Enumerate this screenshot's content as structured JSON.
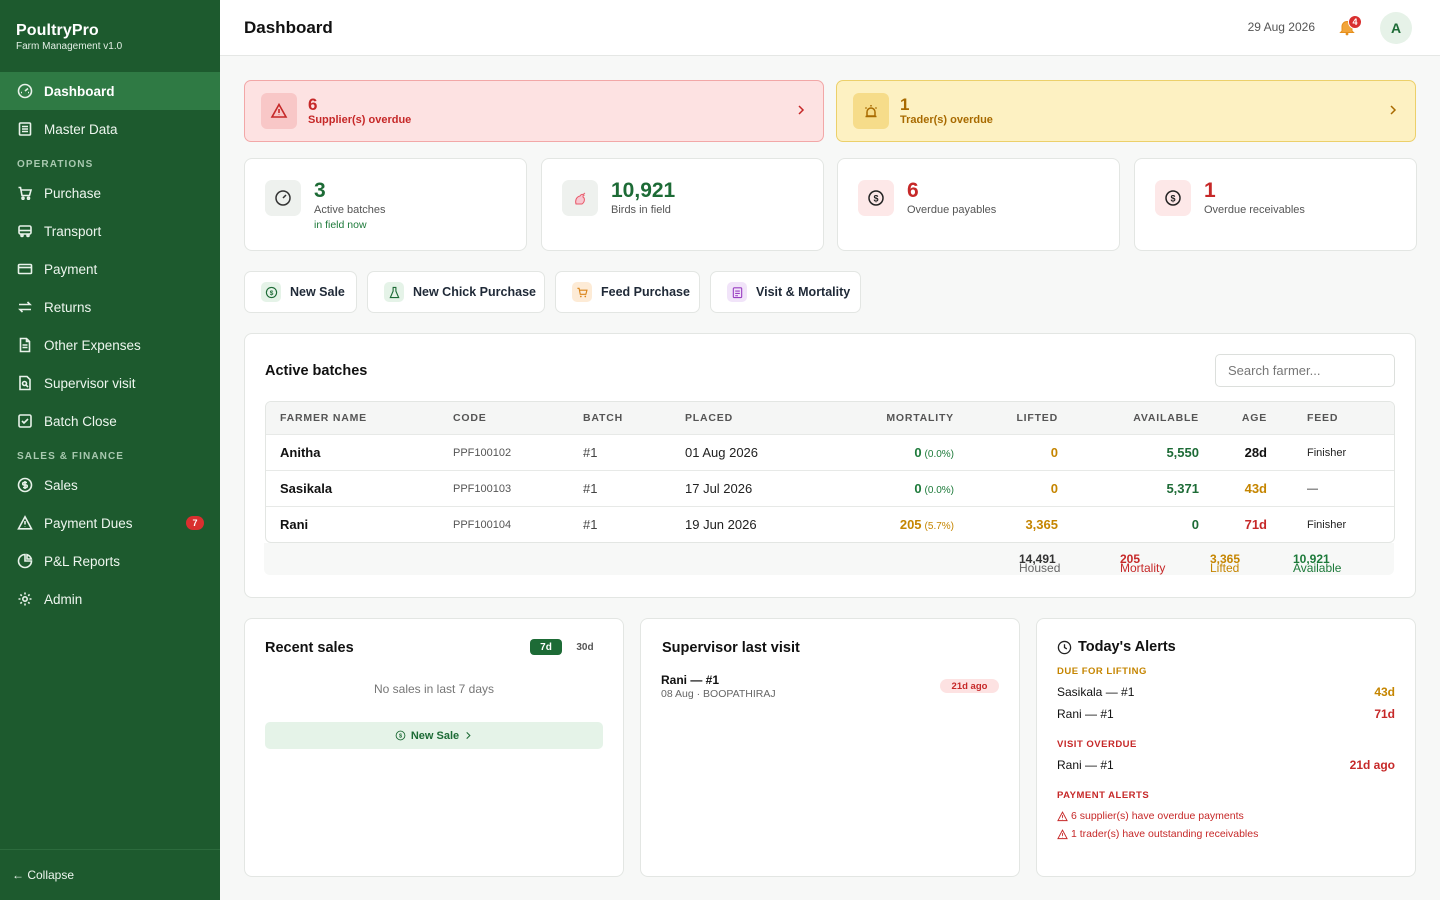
{
  "brand": {
    "name": "PoultryPro",
    "sub": "Farm Management v1.0"
  },
  "nav": {
    "dashboard": "Dashboard",
    "master_data": "Master Data",
    "section_operations": "OPERATIONS",
    "purchase": "Purchase",
    "transport": "Transport",
    "payment": "Payment",
    "returns": "Returns",
    "other_expenses": "Other Expenses",
    "supervisor_visit": "Supervisor visit",
    "batch_close": "Batch Close",
    "section_sales": "SALES & FINANCE",
    "sales": "Sales",
    "payment_dues": "Payment Dues",
    "payment_dues_badge": "7",
    "pl_reports": "P&L Reports",
    "admin": "Admin",
    "collapse": "← Collapse"
  },
  "header": {
    "title": "Dashboard",
    "date": "29 Aug 2026",
    "notifications": "4",
    "avatar": "A"
  },
  "alerts": {
    "suppliers": {
      "count": "6",
      "label": "Supplier(s) overdue",
      "color": "#c62828"
    },
    "traders": {
      "count": "1",
      "label": "Trader(s) overdue",
      "color": "#a86a00"
    }
  },
  "stats": {
    "active": {
      "value": "3",
      "label": "Active batches",
      "sub": "in field now"
    },
    "birds": {
      "value": "10,921",
      "label": "Birds in field"
    },
    "payables": {
      "value": "6",
      "label": "Overdue payables"
    },
    "receivables": {
      "value": "1",
      "label": "Overdue receivables"
    }
  },
  "actions": {
    "new_sale": "New Sale",
    "new_chick": "New Chick Purchase",
    "feed": "Feed Purchase",
    "visit": "Visit & Mortality"
  },
  "batches": {
    "title": "Active batches",
    "search_placeholder": "Search farmer...",
    "columns": {
      "farmer": "FARMER NAME",
      "code": "CODE",
      "batch": "BATCH",
      "placed": "PLACED",
      "mortality": "MORTALITY",
      "lifted": "LIFTED",
      "available": "AVAILABLE",
      "age": "AGE",
      "feed": "FEED"
    },
    "rows": [
      {
        "farmer": "Anitha",
        "code": "PPF100102",
        "batch": "#1",
        "placed": "01 Aug 2026",
        "mortality": "0",
        "mortality_pct": "(0.0%)",
        "lifted": "0",
        "available": "5,550",
        "age": "28d",
        "feed": "Finisher"
      },
      {
        "farmer": "Sasikala",
        "code": "PPF100103",
        "batch": "#1",
        "placed": "17 Jul 2026",
        "mortality": "0",
        "mortality_pct": "(0.0%)",
        "lifted": "0",
        "available": "5,371",
        "age": "43d",
        "feed": "—"
      },
      {
        "farmer": "Rani",
        "code": "PPF100104",
        "batch": "#1",
        "placed": "19 Jun 2026",
        "mortality": "205",
        "mortality_pct": "(5.7%)",
        "lifted": "3,365",
        "available": "0",
        "age": "71d",
        "feed": "Finisher"
      }
    ],
    "totals": {
      "housed_label": "Housed",
      "housed": "14,491",
      "mortality_label": "Mortality",
      "mortality": "205",
      "lifted_label": "Lifted",
      "lifted": "3,365",
      "available_label": "Available",
      "available": "10,921"
    }
  },
  "recent_sales": {
    "title": "Recent sales",
    "tab_7d": "7d",
    "tab_30d": "30d",
    "empty": "No sales in last 7 days",
    "button": "New Sale"
  },
  "supervisor": {
    "title": "Supervisor last visit",
    "name": "Rani — #1",
    "sub": "08 Aug · BOOPATHIRAJ",
    "ago": "21d ago"
  },
  "today_alerts": {
    "title": "Today's Alerts",
    "due_lifting": "DUE FOR LIFTING",
    "lifting_rows": [
      {
        "name": "Sasikala — #1",
        "value": "43d"
      },
      {
        "name": "Rani — #1",
        "value": "71d"
      }
    ],
    "visit_overdue": "VISIT OVERDUE",
    "visit_rows": [
      {
        "name": "Rani — #1",
        "value": "21d ago"
      }
    ],
    "payment_alerts": "PAYMENT ALERTS",
    "payment_rows": [
      "6 supplier(s) have overdue payments",
      "1 trader(s) have outstanding receivables"
    ]
  }
}
